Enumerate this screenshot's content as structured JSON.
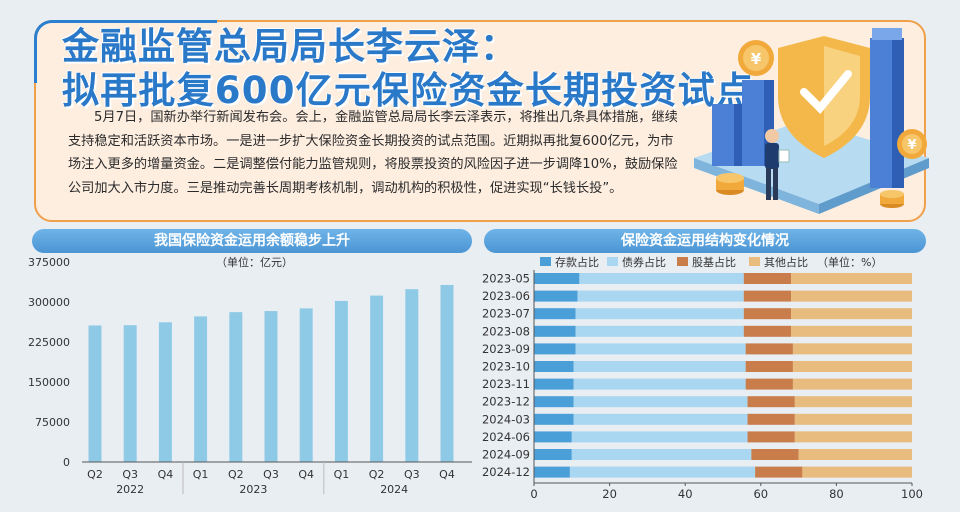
{
  "headline": {
    "line1": "金融监管总局局长李云泽：",
    "line2": "拟再批复600亿元保险资金长期投资试点"
  },
  "body_text": "5月7日，国新办举行新闻发布会。会上，金融监管总局局长李云泽表示，将推出几条具体措施，继续支持稳定和活跃资本市场。一是进一步扩大保险资金长期投资的试点范围。近期拟再批复600亿元，为市场注入更多的增量资金。二是调整偿付能力监管规则，将股票投资的风险因子进一步调降10%，鼓励保险公司加大入市力度。三是推动完善长周期考核机制，调动机构的积极性，促进实现“长钱长投”。",
  "colors": {
    "headline": "#2a78c8",
    "header_bg": "#5aa5df",
    "bar": "#8ecae6",
    "deposit": "#4a9fd8",
    "bond": "#a9d6f0",
    "equity": "#c87d4b",
    "other": "#e8bb7e"
  },
  "chart_data": [
    {
      "type": "bar",
      "title": "我国保险资金运用余额稳步上升",
      "unit_label": "（单位：亿元）",
      "categories": [
        "Q2",
        "Q3",
        "Q4",
        "Q1",
        "Q2",
        "Q3",
        "Q4",
        "Q1",
        "Q2",
        "Q3",
        "Q4"
      ],
      "groups": [
        {
          "label": "2022",
          "count": 3
        },
        {
          "label": "2023",
          "count": 4
        },
        {
          "label": "2024",
          "count": 4
        }
      ],
      "values": [
        256000,
        256500,
        262000,
        273000,
        281000,
        283000,
        288000,
        302000,
        312000,
        324000,
        332000
      ],
      "yticks": [
        0,
        75000,
        150000,
        225000,
        300000,
        375000
      ],
      "ytick_labels": [
        "0",
        "75000",
        "150000",
        "225000",
        "300000",
        "375000"
      ],
      "ylim": [
        0,
        375000
      ],
      "grid": false
    },
    {
      "type": "bar",
      "orientation": "horizontal",
      "stacked": true,
      "title": "保险资金运用结构变化情况",
      "legend": [
        "存款占比",
        "债券占比",
        "股基占比",
        "其他占比"
      ],
      "legend_unit": "（单位：%）",
      "legend_position": "top",
      "categories": [
        "2023-05",
        "2023-06",
        "2023-07",
        "2023-08",
        "2023-09",
        "2023-10",
        "2023-11",
        "2023-12",
        "2024-03",
        "2024-06",
        "2024-09",
        "2024-12"
      ],
      "series": [
        {
          "name": "存款占比",
          "values": [
            12,
            11.5,
            11,
            11,
            11,
            10.5,
            10.5,
            10.5,
            10.5,
            10,
            10,
            9.5
          ]
        },
        {
          "name": "债券占比",
          "values": [
            43.5,
            44,
            44.5,
            44.5,
            45,
            45.5,
            45.5,
            46,
            46,
            46.5,
            47.5,
            49
          ]
        },
        {
          "name": "股基占比",
          "values": [
            12.5,
            12.5,
            12.5,
            12.5,
            12.5,
            12.5,
            12.5,
            12.5,
            12.5,
            12.5,
            12.5,
            12.5
          ]
        },
        {
          "name": "其他占比",
          "values": [
            32,
            32,
            32,
            32,
            31.5,
            31.5,
            31.5,
            31,
            31,
            31,
            30,
            29
          ]
        }
      ],
      "xticks": [
        0,
        20,
        40,
        60,
        80,
        100
      ],
      "xlim": [
        0,
        100
      ]
    }
  ]
}
